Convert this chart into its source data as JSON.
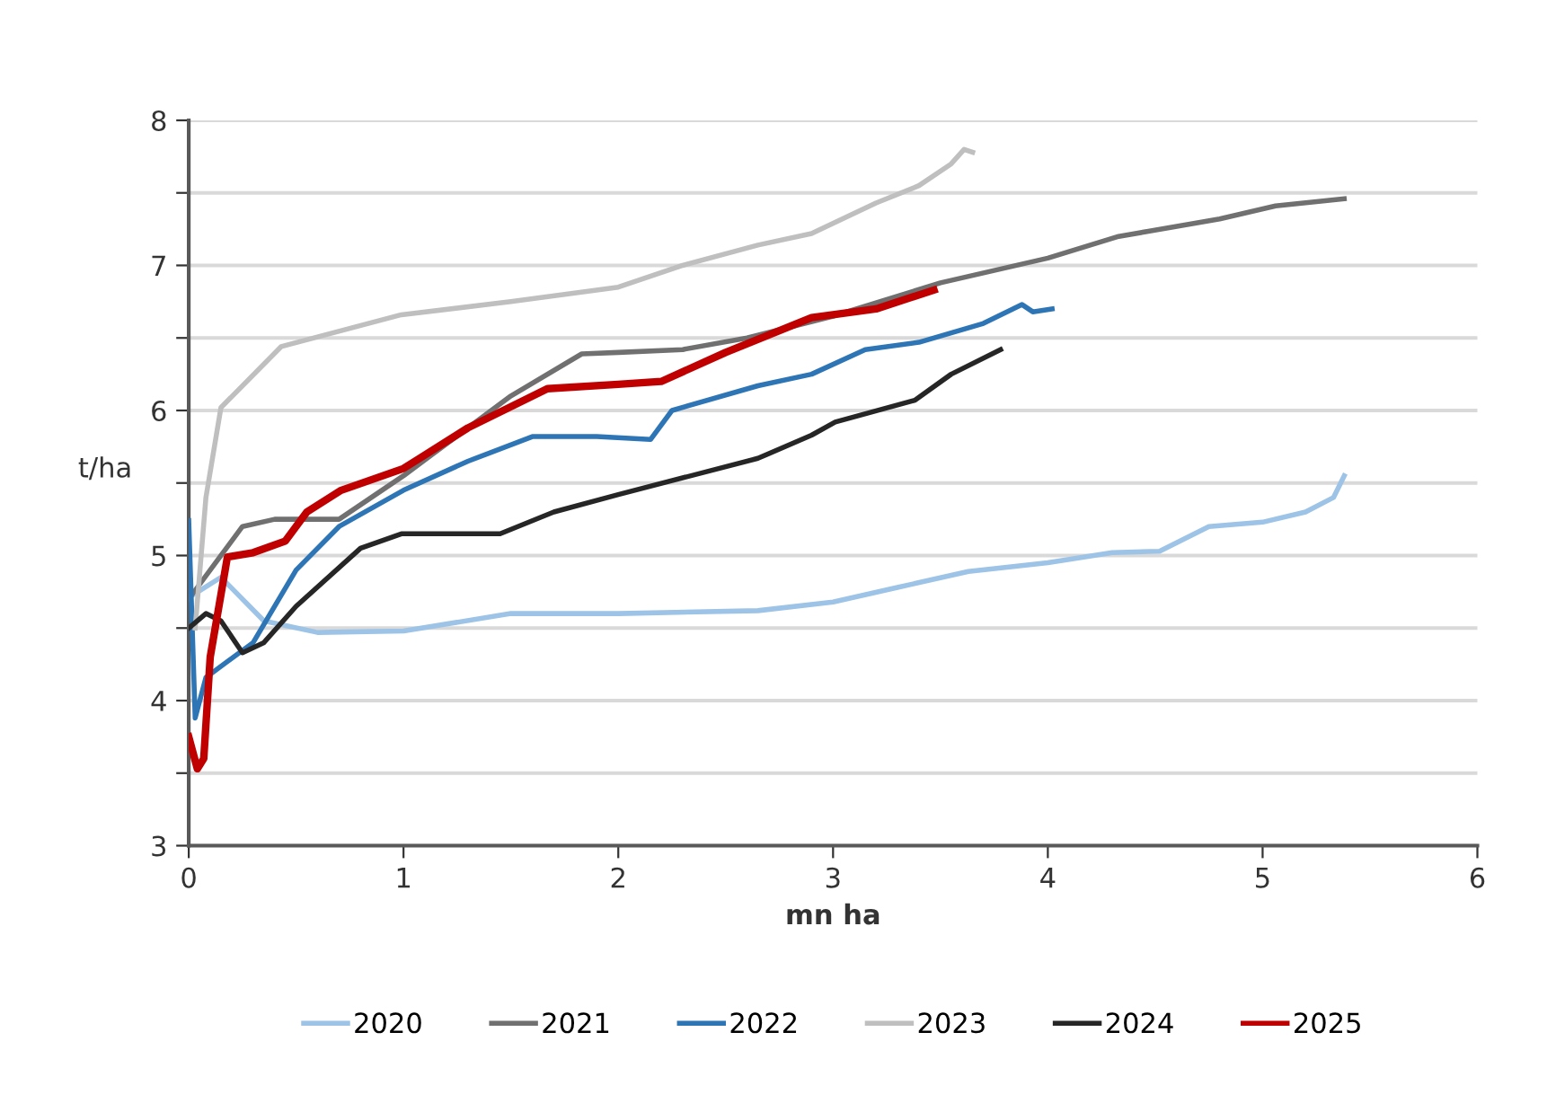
{
  "chart_data": {
    "type": "line",
    "xlabel": "mn ha",
    "ylabel": "t/ha",
    "xlim": [
      0,
      6
    ],
    "xticks": [
      0,
      1,
      2,
      3,
      4,
      5,
      6
    ],
    "ylim": [
      3,
      8
    ],
    "yticks": [
      3,
      {
        "value": 3.5,
        "label": null
      },
      4,
      {
        "value": 4.5,
        "label": null
      },
      5,
      {
        "value": 5.5,
        "label": null
      },
      6,
      {
        "value": 6.5,
        "label": null
      },
      7,
      {
        "value": 7.5,
        "label": null
      },
      8
    ],
    "grid": "y",
    "legend": "bottom",
    "marker": "none",
    "line_style": "solid",
    "series": [
      {
        "name": "2020",
        "color": "#9dc3e6",
        "x": [
          0,
          0.15,
          0.35,
          0.6,
          1.0,
          1.5,
          2.0,
          2.65,
          3.0,
          3.3,
          3.63,
          4.0,
          4.3,
          4.52,
          4.75,
          5.0,
          5.2,
          5.33,
          5.38
        ],
        "values": [
          4.71,
          4.85,
          4.55,
          4.47,
          4.48,
          4.6,
          4.6,
          4.62,
          4.68,
          4.78,
          4.89,
          4.95,
          5.02,
          5.03,
          5.2,
          5.23,
          5.3,
          5.4,
          5.55
        ]
      },
      {
        "name": "2021",
        "color": "#707070",
        "x": [
          0,
          0.1,
          0.25,
          0.4,
          0.7,
          1.0,
          1.5,
          1.83,
          2.0,
          2.3,
          2.6,
          3.0,
          3.5,
          4.0,
          4.33,
          4.8,
          5.06,
          5.38
        ],
        "values": [
          4.7,
          4.9,
          5.2,
          5.25,
          5.25,
          5.55,
          6.1,
          6.39,
          6.4,
          6.42,
          6.5,
          6.65,
          6.88,
          7.05,
          7.2,
          7.32,
          7.41,
          7.46
        ]
      },
      {
        "name": "2022",
        "color": "#2e75b6",
        "x": [
          0,
          0.03,
          0.08,
          0.3,
          0.5,
          0.7,
          1.0,
          1.3,
          1.6,
          1.9,
          2.15,
          2.25,
          2.65,
          2.9,
          3.15,
          3.4,
          3.7,
          3.88,
          3.93,
          4.02
        ],
        "values": [
          5.24,
          3.88,
          4.16,
          4.4,
          4.9,
          5.2,
          5.45,
          5.65,
          5.82,
          5.82,
          5.8,
          6.0,
          6.17,
          6.25,
          6.42,
          6.47,
          6.6,
          6.73,
          6.68,
          6.7
        ]
      },
      {
        "name": "2023",
        "color": "#bfbfbf",
        "x": [
          0.03,
          0.08,
          0.15,
          0.43,
          0.99,
          1.5,
          2.0,
          2.3,
          2.65,
          2.9,
          3.2,
          3.4,
          3.55,
          3.61,
          3.65
        ],
        "values": [
          4.5,
          5.4,
          6.02,
          6.44,
          6.66,
          6.75,
          6.85,
          7.0,
          7.14,
          7.22,
          7.43,
          7.55,
          7.7,
          7.8,
          7.78
        ]
      },
      {
        "name": "2024",
        "color": "#262626",
        "x": [
          0,
          0.08,
          0.15,
          0.25,
          0.35,
          0.5,
          0.8,
          0.99,
          1.2,
          1.45,
          1.7,
          2.0,
          2.65,
          2.9,
          3.01,
          3.38,
          3.55,
          3.78
        ],
        "values": [
          4.5,
          4.6,
          4.55,
          4.33,
          4.4,
          4.65,
          5.05,
          5.15,
          5.15,
          5.15,
          5.3,
          5.42,
          5.67,
          5.83,
          5.92,
          6.07,
          6.25,
          6.42
        ]
      },
      {
        "name": "2025",
        "color": "#c00000",
        "x": [
          0,
          0.04,
          0.07,
          0.1,
          0.18,
          0.3,
          0.45,
          0.55,
          0.71,
          1.0,
          1.3,
          1.67,
          2.0,
          2.2,
          2.5,
          2.9,
          3.2,
          3.47
        ],
        "values": [
          3.75,
          3.53,
          3.6,
          4.3,
          4.99,
          5.02,
          5.1,
          5.3,
          5.45,
          5.6,
          5.88,
          6.15,
          6.18,
          6.2,
          6.4,
          6.64,
          6.7,
          6.83
        ]
      }
    ]
  }
}
